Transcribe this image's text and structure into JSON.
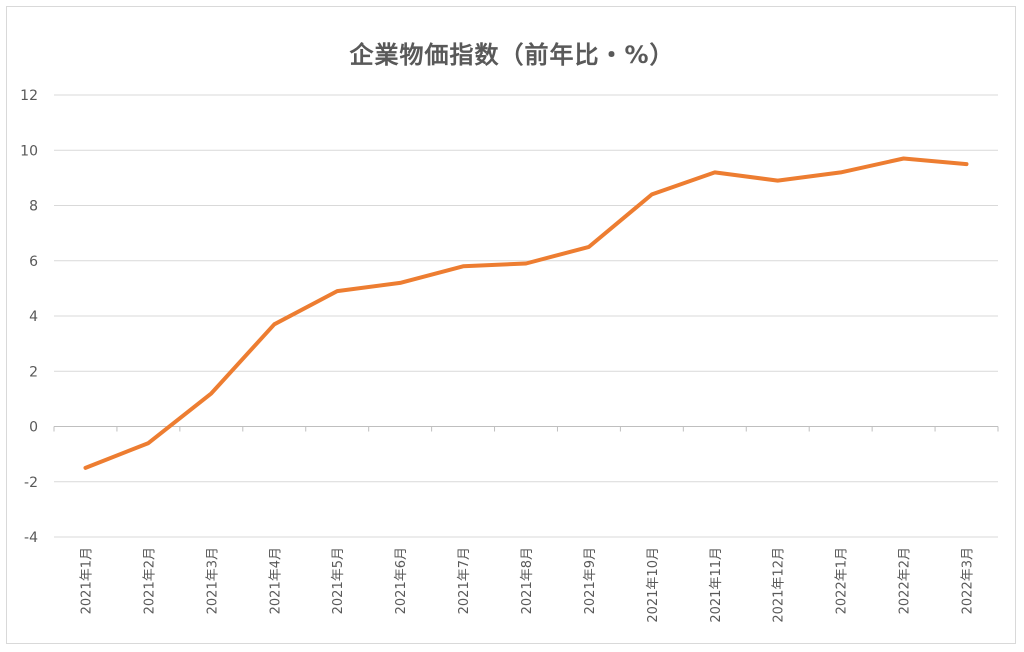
{
  "chart_data": {
    "type": "line",
    "title": "企業物価指数（前年比・%）",
    "xlabel": "",
    "ylabel": "",
    "categories": [
      "2021年1月",
      "2021年2月",
      "2021年3月",
      "2021年4月",
      "2021年5月",
      "2021年6月",
      "2021年7月",
      "2021年8月",
      "2021年9月",
      "2021年10月",
      "2021年11月",
      "2021年12月",
      "2022年1月",
      "2022年2月",
      "2022年3月"
    ],
    "series": [
      {
        "values": [
          -1.5,
          -0.6,
          1.2,
          3.7,
          4.9,
          5.2,
          5.8,
          5.9,
          6.5,
          8.4,
          9.2,
          8.9,
          9.2,
          9.7,
          9.5
        ],
        "color": "#ED7D31"
      }
    ],
    "ylim": [
      -4,
      12
    ],
    "yticks": [
      -4,
      -2,
      0,
      2,
      4,
      6,
      8,
      10,
      12
    ],
    "grid": true,
    "legend": "none"
  }
}
